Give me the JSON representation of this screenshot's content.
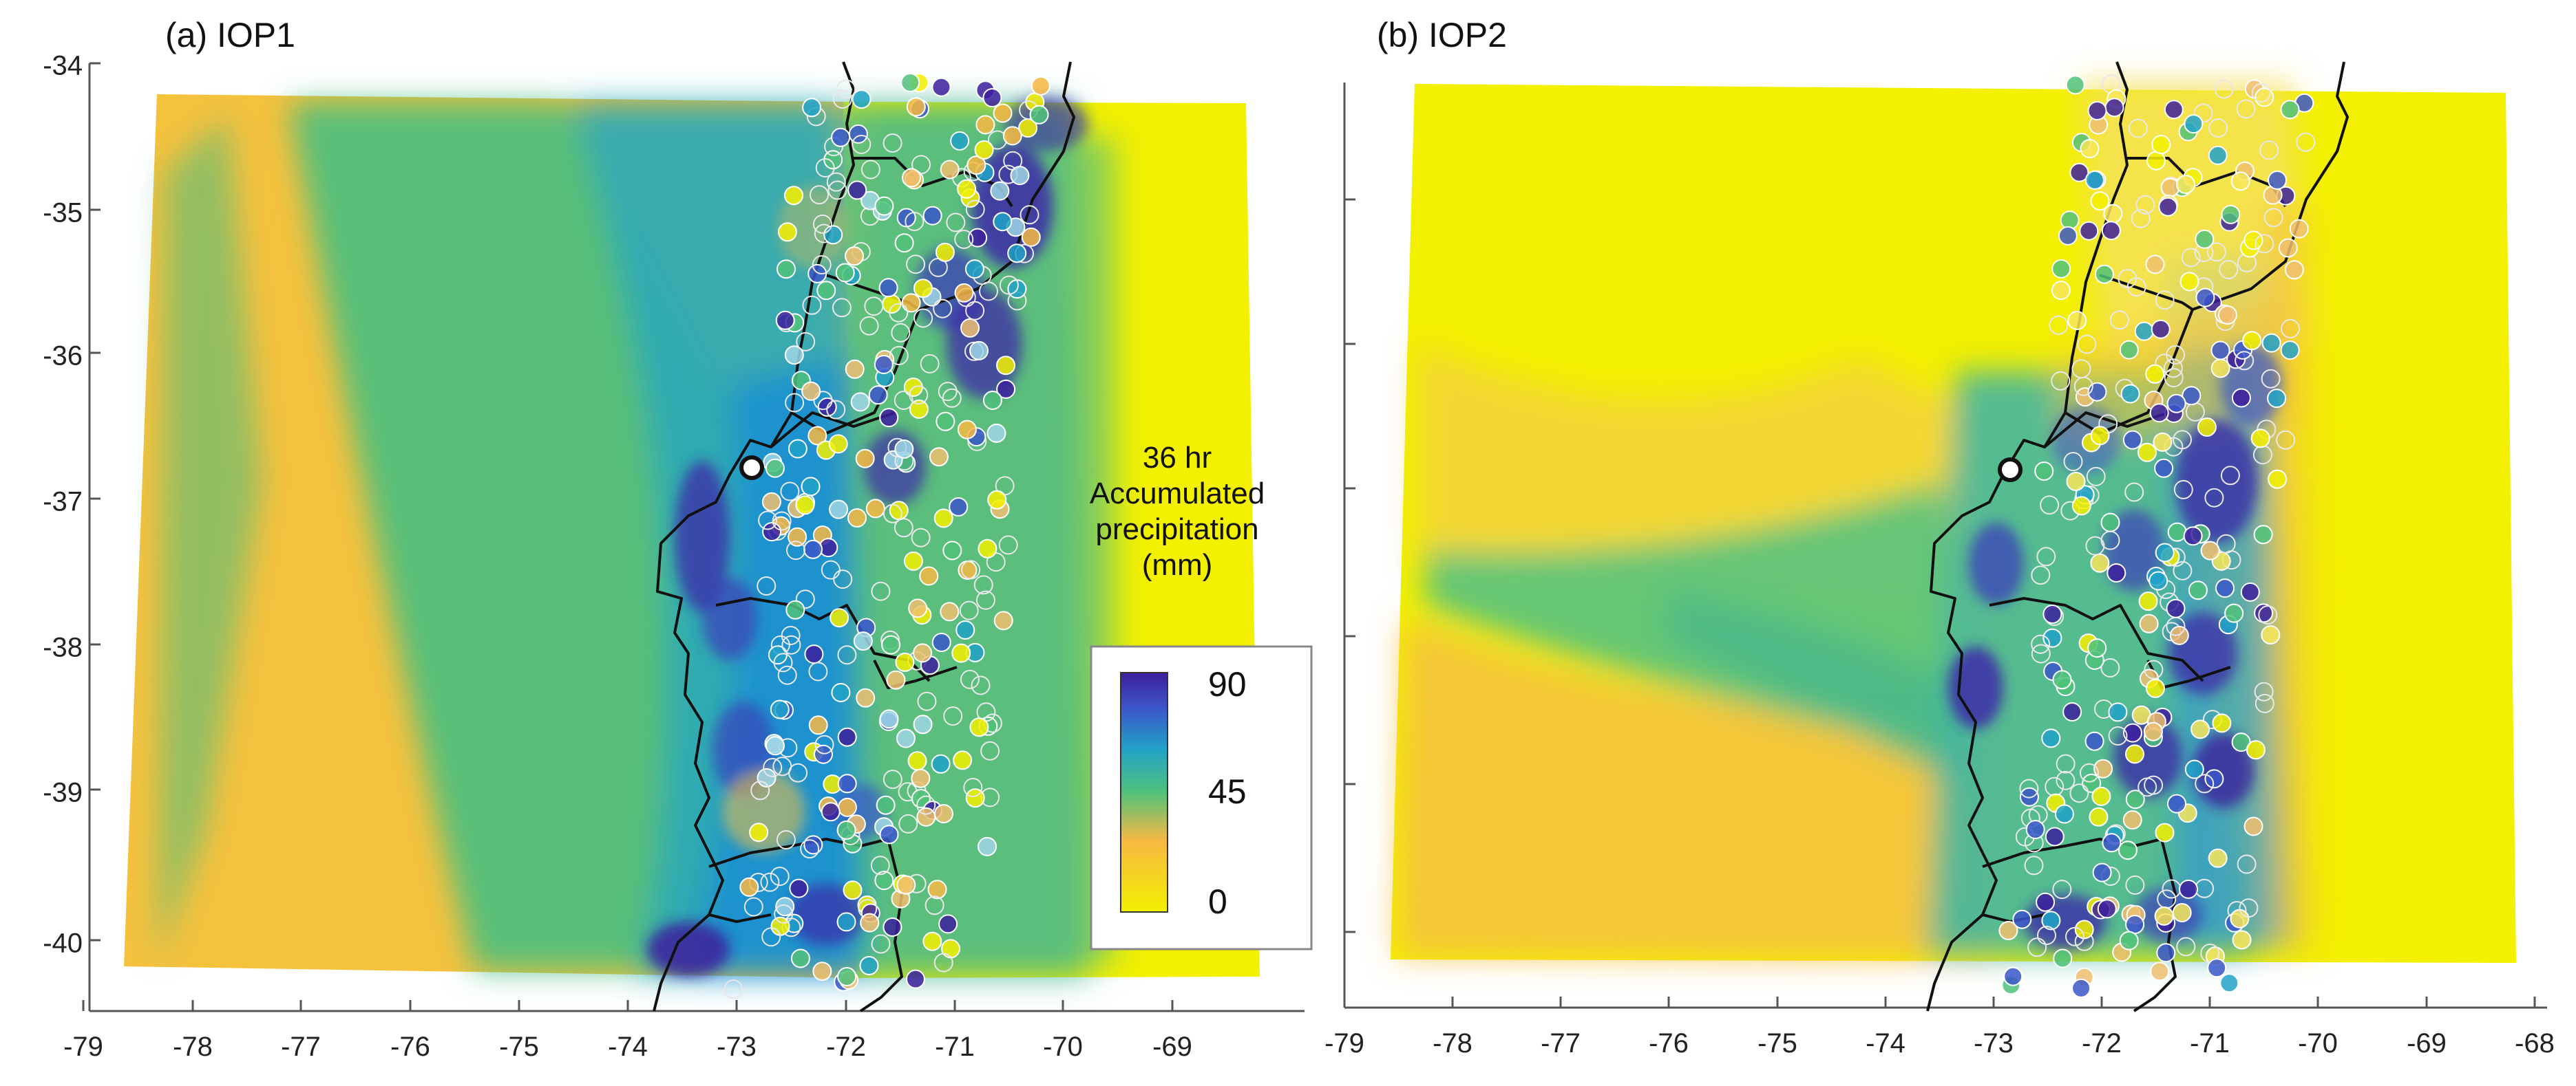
{
  "panels": [
    {
      "label": "(a) IOP1",
      "x_ticks": [
        "-79",
        "-78",
        "-77",
        "-76",
        "-75",
        "-74",
        "-73",
        "-72",
        "-71",
        "-70",
        "-69"
      ],
      "y_ticks": [
        "-34",
        "-35",
        "-36",
        "-37",
        "-38",
        "-39",
        "-40"
      ]
    },
    {
      "label": "(b) IOP2",
      "x_ticks": [
        "-79",
        "-78",
        "-77",
        "-76",
        "-75",
        "-74",
        "-73",
        "-72",
        "-71",
        "-70",
        "-69",
        "-68"
      ],
      "y_ticks": []
    }
  ],
  "colorbar": {
    "title_line1": "36 hr",
    "title_line2": "Accumulated",
    "title_line3": "precipitation",
    "title_line4": "(mm)",
    "max_label": "90",
    "mid_label": "45",
    "min_label": "0",
    "colors": [
      "#f3f000",
      "#f7b843",
      "#50c27a",
      "#21a2c8",
      "#3b57c9",
      "#3c1f9c"
    ]
  },
  "map": {
    "lon_range": [
      -79,
      -68
    ],
    "lat_range": [
      -40.5,
      -34
    ],
    "marker_site": {
      "lon": -72.9,
      "lat": -36.78
    }
  }
}
